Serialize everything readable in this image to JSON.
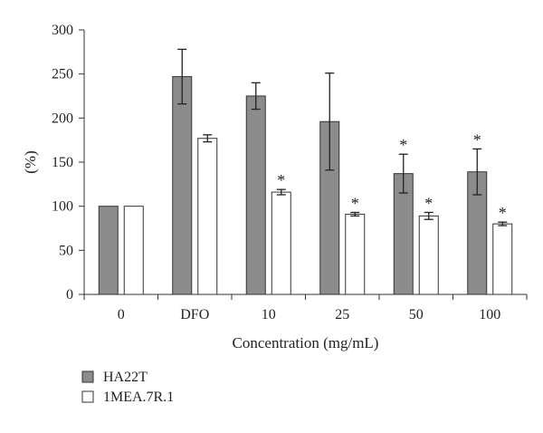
{
  "chart_data": {
    "type": "bar",
    "categories": [
      "0",
      "DFO",
      "10",
      "25",
      "50",
      "100"
    ],
    "series": [
      {
        "name": "HA22T",
        "color": "#8c8c8c",
        "values": [
          100,
          247,
          225,
          196,
          137,
          139
        ],
        "errors": [
          0,
          31,
          15,
          55,
          22,
          26
        ],
        "significant": [
          false,
          false,
          false,
          false,
          true,
          true
        ]
      },
      {
        "name": "1MEA.7R.1",
        "color": "#ffffff",
        "values": [
          100,
          177,
          116,
          91,
          89,
          80
        ],
        "errors": [
          0,
          4,
          3,
          2,
          4,
          2
        ],
        "significant": [
          false,
          false,
          true,
          true,
          true,
          true
        ]
      }
    ],
    "significance_marker": "*",
    "xlabel": "Concentration (mg/mL)",
    "ylabel": "(%)",
    "ylim": [
      0,
      300
    ],
    "yticks": [
      "0",
      "50",
      "100",
      "150",
      "200",
      "250",
      "300"
    ],
    "grid": false,
    "legend_position": "bottom-left"
  }
}
